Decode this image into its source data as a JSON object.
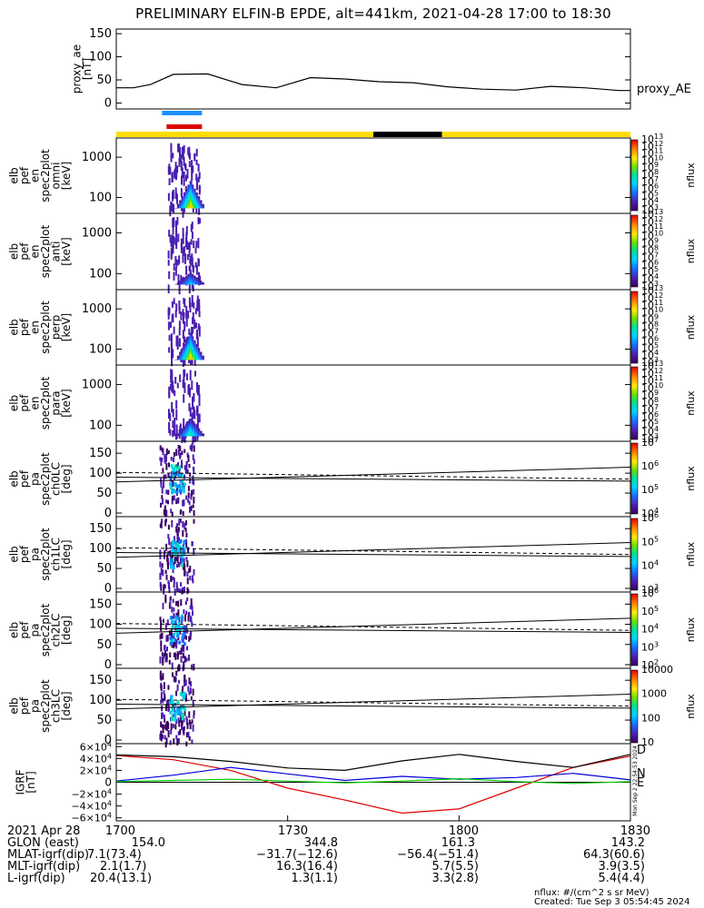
{
  "chart_data": {
    "type": "spectrogram",
    "title": "PRELIMINARY ELFIN-B EPDE, alt=441km, 2021-04-28 17:00 to 18:30",
    "time_range": [
      "17:00",
      "18:30"
    ],
    "panels": [
      {
        "id": "proxy_ae",
        "type": "line",
        "ylabel": [
          "proxy_ae",
          "[nT]"
        ],
        "ylim": [
          -5,
          160
        ],
        "yticks": [
          0,
          50,
          100,
          150
        ],
        "series_label": "proxy_AE",
        "series": [
          {
            "x": [
              0,
              3,
              6,
              10,
              16,
              22,
              28,
              34,
              40,
              46,
              52,
              58,
              64,
              70,
              76,
              82,
              88,
              90
            ],
            "y": [
              33,
              33,
              40,
              62,
              63,
              40,
              33,
              55,
              52,
              46,
              44,
              35,
              30,
              28,
              36,
              33,
              27,
              27
            ]
          }
        ]
      },
      {
        "id": "en_omni",
        "type": "spectrogram",
        "ylabel": [
          "elb",
          "pef",
          "en",
          "spec2plot",
          "omni",
          "[keV]"
        ],
        "yticks": [
          100,
          1000
        ],
        "zlabel": "nflux",
        "ztick_exponents": [
          3,
          4,
          5,
          6,
          7,
          8,
          9,
          10,
          11,
          12,
          13
        ]
      },
      {
        "id": "en_anti",
        "type": "spectrogram",
        "ylabel": [
          "elb",
          "pef",
          "en",
          "spec2plot",
          "anti",
          "[keV]"
        ],
        "yticks": [
          100,
          1000
        ],
        "zlabel": "nflux",
        "ztick_exponents": [
          3,
          4,
          5,
          6,
          7,
          8,
          9,
          10,
          11,
          12,
          13
        ]
      },
      {
        "id": "en_perp",
        "type": "spectrogram",
        "ylabel": [
          "elb",
          "pef",
          "en",
          "spec2plot",
          "perp",
          "[keV]"
        ],
        "yticks": [
          100,
          1000
        ],
        "zlabel": "nflux",
        "ztick_exponents": [
          3,
          4,
          5,
          6,
          7,
          8,
          9,
          10,
          11,
          12,
          13
        ]
      },
      {
        "id": "en_para",
        "type": "spectrogram",
        "ylabel": [
          "elb",
          "pef",
          "en",
          "spec2plot",
          "para",
          "[keV]"
        ],
        "yticks": [
          100,
          1000
        ],
        "zlabel": "nflux",
        "ztick_exponents": [
          3,
          4,
          5,
          6,
          7,
          8,
          9,
          10,
          11,
          12,
          13
        ]
      },
      {
        "id": "pa_ch0",
        "type": "spectrogram",
        "ylabel": [
          "elb",
          "pef",
          "pa",
          "spec2plot",
          "ch0LC",
          "[deg]"
        ],
        "yticks": [
          0,
          50,
          100,
          150
        ],
        "zlabel": "nflux",
        "ztick_exponents": [
          4,
          5,
          6,
          7
        ]
      },
      {
        "id": "pa_ch1",
        "type": "spectrogram",
        "ylabel": [
          "elb",
          "pef",
          "pa",
          "spec2plot",
          "ch1LC",
          "[deg]"
        ],
        "yticks": [
          0,
          50,
          100,
          150
        ],
        "zlabel": "nflux",
        "ztick_exponents": [
          3,
          4,
          5,
          6
        ]
      },
      {
        "id": "pa_ch2",
        "type": "spectrogram",
        "ylabel": [
          "elb",
          "pef",
          "pa",
          "spec2plot",
          "ch2LC",
          "[deg]"
        ],
        "yticks": [
          0,
          50,
          100,
          150
        ],
        "zlabel": "nflux",
        "ztick_exponents": [
          2,
          3,
          4,
          5,
          6
        ]
      },
      {
        "id": "pa_ch3",
        "type": "spectrogram",
        "ylabel": [
          "elb",
          "pef",
          "pa",
          "spec2plot",
          "ch3LC",
          "[deg]"
        ],
        "yticks": [
          0,
          50,
          100,
          150
        ],
        "zlabel": "nflux",
        "zticks": [
          "10",
          "100",
          "1000",
          "10000"
        ]
      },
      {
        "id": "igrf",
        "type": "line",
        "ylabel": [
          "IGRF",
          "[nT]"
        ],
        "ylim": [
          -65000,
          65000
        ],
        "ytick_mantissas": [
          "6",
          "4",
          "2",
          "0",
          "−2",
          "−4",
          "−6"
        ],
        "ytick_values": [
          60000,
          40000,
          20000,
          0,
          -20000,
          -40000,
          -60000
        ],
        "series": [
          {
            "name": "D",
            "color": "#dd0000",
            "x": [
              0,
              10,
              20,
              30,
              40,
              50,
              60,
              70,
              80,
              90
            ],
            "y": [
              45000,
              38000,
              20000,
              -10000,
              -30000,
              -52000,
              -45000,
              -10000,
              25000,
              44000
            ]
          },
          {
            "name": "N",
            "color": "#0000dd",
            "x": [
              0,
              10,
              20,
              30,
              40,
              50,
              60,
              70,
              80,
              90
            ],
            "y": [
              2000,
              12000,
              25000,
              14000,
              3000,
              10000,
              5000,
              8000,
              15000,
              4000
            ]
          },
          {
            "name": "E",
            "color": "#00cc00",
            "x": [
              0,
              10,
              20,
              30,
              40,
              50,
              60,
              70,
              80,
              90
            ],
            "y": [
              1000,
              3000,
              5000,
              2000,
              -1000,
              2000,
              6000,
              1000,
              -2000,
              1000
            ]
          },
          {
            "name": "",
            "color": "#000000",
            "x": [
              0,
              10,
              20,
              30,
              40,
              50,
              60,
              70,
              80,
              90
            ],
            "y": [
              46000,
              43000,
              35000,
              24000,
              20000,
              36000,
              47000,
              35000,
              25000,
              47000
            ]
          }
        ]
      }
    ],
    "overlay_lines": [
      {
        "style": "solid",
        "y_start": 78,
        "y_end": 115
      },
      {
        "style": "solid",
        "y_start": 90,
        "y_end": 80
      },
      {
        "style": "dashed",
        "y_start": 102,
        "y_end": 85
      }
    ],
    "orbit_bar": {
      "color": "#ffdd00",
      "dark_segment": [
        45,
        57
      ]
    },
    "science_bars": [
      {
        "color": "#1e90ff",
        "x": [
          8,
          15
        ]
      },
      {
        "color": "#dd0000",
        "x": [
          8.8,
          15
        ]
      }
    ],
    "ephemeris_table": {
      "rows": [
        {
          "label": "2021 Apr 28",
          "values": [
            "1700",
            "1730",
            "1800",
            "1830"
          ]
        },
        {
          "label": "GLON (east)",
          "values": [
            "154.0",
            "344.8",
            "161.3",
            "143.2"
          ]
        },
        {
          "label": "MLAT-igrf(dip)",
          "values": [
            "7.1(73.4)",
            "−31.7(−12.6)",
            "−56.4(−51.4)",
            "64.3(60.6)"
          ]
        },
        {
          "label": "MLT-igrf(dip)",
          "values": [
            "2.1(1.7)",
            "16.3(16.4)",
            "5.7(5.5)",
            "3.9(3.5)"
          ]
        },
        {
          "label": "L-igrf(dip)",
          "values": [
            "20.4(13.1)",
            "1.3(1.1)",
            "3.3(2.8)",
            "5.4(4.4)"
          ]
        }
      ]
    },
    "footer": {
      "units": "nflux: #/(cm^2 s sr MeV)",
      "created": "Created: Tue Sep  3 05:54:45 2024",
      "stamp": "Mon Sep  2 22:54:53 2024"
    }
  }
}
